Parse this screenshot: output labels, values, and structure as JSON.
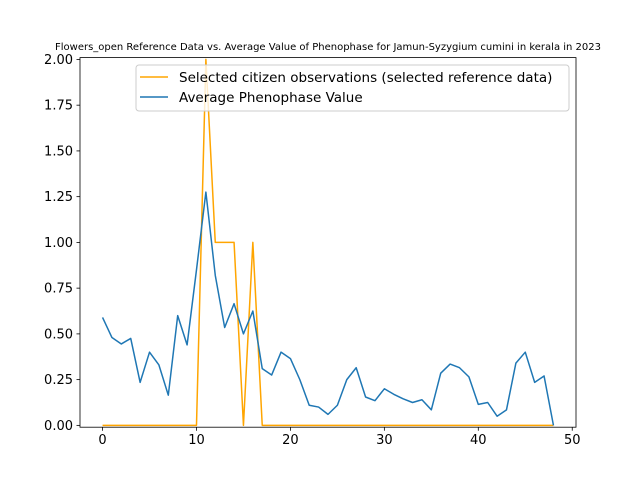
{
  "chart_data": {
    "type": "line",
    "title": "Flowers_open Reference Data vs. Average Value of Phenophase for Jamun-Syzygium cumini in kerala in 2023",
    "xlabel": "",
    "ylabel": "",
    "xlim": [
      -2.4,
      50.4
    ],
    "ylim": [
      -0.01,
      2.01
    ],
    "x_ticks": [
      0,
      10,
      20,
      30,
      40,
      50
    ],
    "y_ticks": [
      0.0,
      0.25,
      0.5,
      0.75,
      1.0,
      1.25,
      1.5,
      1.75,
      2.0
    ],
    "y_tick_labels": [
      "0.00",
      "0.25",
      "0.50",
      "0.75",
      "1.00",
      "1.25",
      "1.50",
      "1.75",
      "2.00"
    ],
    "grid": false,
    "legend_position": "top-right",
    "series": [
      {
        "name": "Selected citizen observations (selected reference data)",
        "color": "#ffa500",
        "x": [
          0,
          1,
          2,
          3,
          4,
          5,
          6,
          7,
          8,
          9,
          10,
          11,
          12,
          13,
          14,
          15,
          16,
          17,
          18,
          19,
          20,
          21,
          22,
          23,
          24,
          25,
          26,
          27,
          28,
          29,
          30,
          31,
          32,
          33,
          34,
          35,
          36,
          37,
          38,
          39,
          40,
          41,
          42,
          43,
          44,
          45,
          46,
          47,
          48
        ],
        "y": [
          0,
          0,
          0,
          0,
          0,
          0,
          0,
          0,
          0,
          0,
          0,
          2.0,
          1.0,
          1.0,
          1.0,
          0,
          1.0,
          0,
          0,
          0,
          0,
          0,
          0,
          0,
          0,
          0,
          0,
          0,
          0,
          0,
          0,
          0,
          0,
          0,
          0,
          0,
          0,
          0,
          0,
          0,
          0,
          0,
          0,
          0,
          0,
          0,
          0,
          0,
          0
        ]
      },
      {
        "name": "Average Phenophase Value",
        "color": "#1f77b4",
        "x": [
          0,
          1,
          2,
          3,
          4,
          5,
          6,
          7,
          8,
          9,
          10,
          11,
          12,
          13,
          14,
          15,
          16,
          17,
          18,
          19,
          20,
          21,
          22,
          23,
          24,
          25,
          26,
          27,
          28,
          29,
          30,
          31,
          32,
          33,
          34,
          35,
          36,
          37,
          38,
          39,
          40,
          41,
          42,
          43,
          44,
          45,
          46,
          47,
          48
        ],
        "y": [
          0.59,
          0.48,
          0.445,
          0.475,
          0.235,
          0.4,
          0.33,
          0.165,
          0.6,
          0.44,
          0.85,
          1.275,
          0.82,
          0.535,
          0.665,
          0.5,
          0.625,
          0.31,
          0.275,
          0.4,
          0.365,
          0.25,
          0.11,
          0.1,
          0.06,
          0.11,
          0.25,
          0.315,
          0.155,
          0.135,
          0.2,
          0.17,
          0.145,
          0.125,
          0.14,
          0.085,
          0.285,
          0.335,
          0.315,
          0.265,
          0.115,
          0.125,
          0.05,
          0.085,
          0.34,
          0.4,
          0.235,
          0.27,
          0.0
        ]
      }
    ]
  }
}
